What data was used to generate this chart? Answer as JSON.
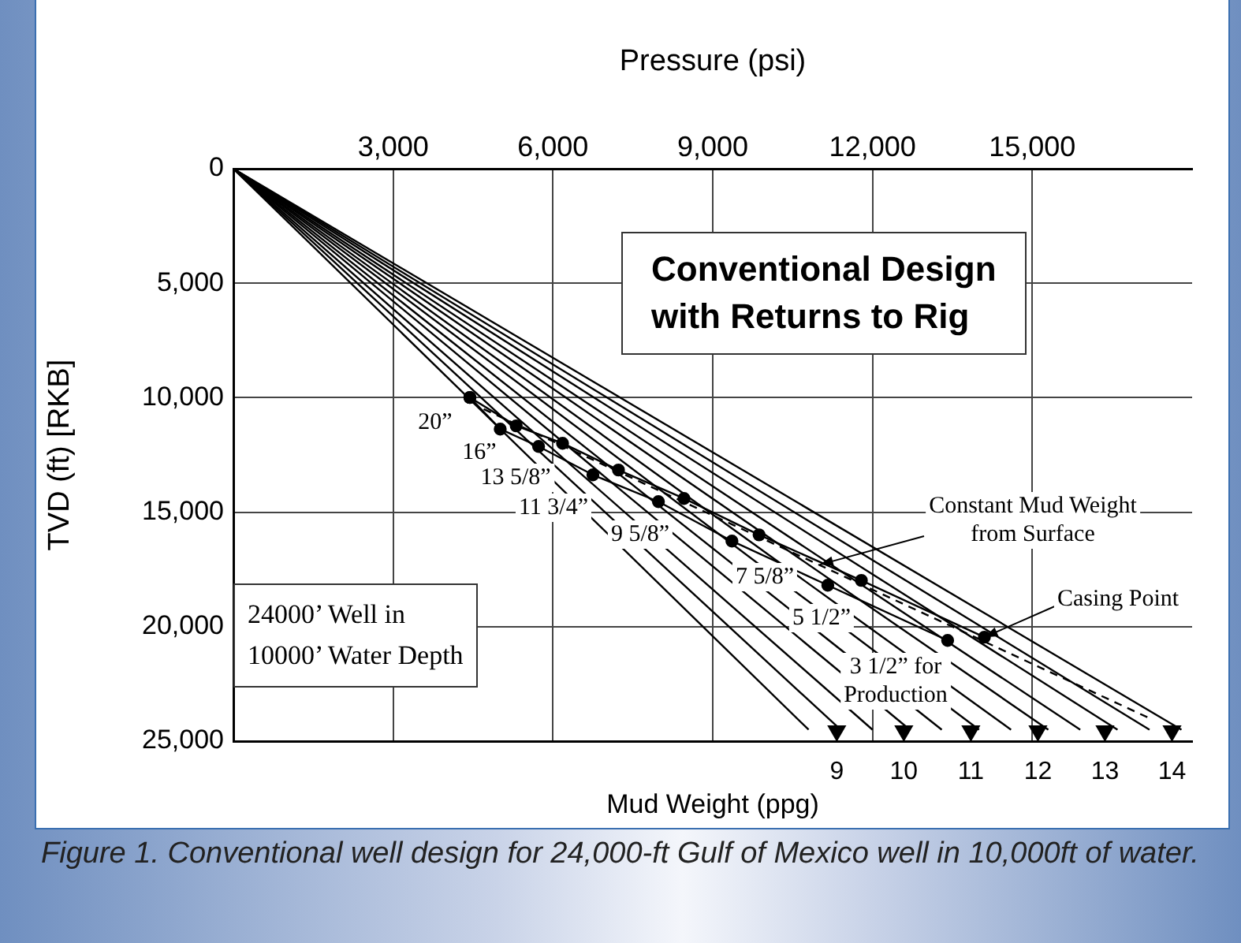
{
  "chart_data": {
    "type": "line",
    "xlabel": "Pressure (psi)",
    "x2label": "Mud Weight (ppg)",
    "ylabel": "TVD (ft) [RKB]",
    "xlim": [
      0,
      18000
    ],
    "xticks": [
      {
        "value": 3000,
        "label": "3,000"
      },
      {
        "value": 6000,
        "label": "6,000"
      },
      {
        "value": 9000,
        "label": "9,000"
      },
      {
        "value": 12000,
        "label": "12,000"
      },
      {
        "value": 15000,
        "label": "15,000"
      }
    ],
    "x2lim": [
      0,
      14.3
    ],
    "x2ticks": [
      9,
      10,
      11,
      12,
      13,
      14
    ],
    "ylim": [
      25000,
      0
    ],
    "yticks": [
      0,
      {
        "value": 5000,
        "label": "5,000"
      },
      {
        "value": 10000,
        "label": "10,000"
      },
      {
        "value": 15000,
        "label": "15,000"
      },
      {
        "value": 20000,
        "label": "20,000"
      },
      {
        "value": 25000,
        "label": "25,000"
      }
    ],
    "grid": true,
    "legend": false,
    "series": [
      {
        "color": "#000000",
        "marker": "none",
        "x": [
          0,
          10800
        ],
        "values": [
          0,
          24500
        ]
      },
      {
        "color": "#000000",
        "marker": "none",
        "x": [
          0,
          11400
        ],
        "values": [
          0,
          24500
        ]
      },
      {
        "color": "#000000",
        "marker": "none",
        "x": [
          0,
          12000
        ],
        "values": [
          0,
          24500
        ]
      },
      {
        "color": "#000000",
        "marker": "none",
        "x": [
          0,
          12700
        ],
        "values": [
          0,
          24500
        ]
      },
      {
        "color": "#000000",
        "marker": "none",
        "x": [
          0,
          13300
        ],
        "values": [
          0,
          24500
        ]
      },
      {
        "color": "#000000",
        "marker": "none",
        "x": [
          0,
          14000
        ],
        "values": [
          0,
          24500
        ]
      },
      {
        "color": "#000000",
        "marker": "none",
        "x": [
          0,
          14600
        ],
        "values": [
          0,
          24500
        ]
      },
      {
        "color": "#000000",
        "marker": "none",
        "x": [
          0,
          15300
        ],
        "values": [
          0,
          24500
        ]
      },
      {
        "color": "#000000",
        "marker": "none",
        "x": [
          0,
          15900
        ],
        "values": [
          0,
          24500
        ]
      },
      {
        "color": "#000000",
        "marker": "none",
        "x": [
          0,
          16600
        ],
        "values": [
          0,
          24500
        ]
      },
      {
        "color": "#000000",
        "marker": "none",
        "x": [
          0,
          17200
        ],
        "values": [
          0,
          24500
        ]
      },
      {
        "color": "#000000",
        "marker": "none",
        "x": [
          0,
          17800
        ],
        "values": [
          0,
          24500
        ]
      },
      {
        "color": "#000000",
        "marker": "none",
        "line_style": "dashed",
        "x": [
          4700,
          17200
        ],
        "values": [
          10500,
          24000
        ]
      },
      {
        "color": "#000000",
        "marker": "circle",
        "x": [
          4440,
          5010,
          5730,
          6750,
          7980,
          9360,
          11160,
          13410
        ],
        "values": [
          9990,
          11370,
          12130,
          13370,
          14540,
          16260,
          18190,
          20600
        ]
      },
      {
        "color": "#000000",
        "marker": "circle",
        "x": [
          4440,
          5310,
          6180,
          7230,
          8460,
          9870,
          11790,
          14100
        ],
        "values": [
          9990,
          11230,
          11990,
          13160,
          14400,
          15990,
          17980,
          20460
        ]
      },
      {
        "type": "scatter",
        "axis": "x2",
        "color": "#000000",
        "marker": "triangle",
        "x": [
          9,
          10,
          11,
          12,
          13,
          14
        ],
        "values": [
          24550,
          24550,
          24550,
          24550,
          24550,
          24550
        ]
      }
    ],
    "annotations": [
      "Conventional Design\nwith Returns to Rig",
      "24000’ Well in\n10000’ Water Depth",
      "20”",
      "16”",
      "13 5/8”",
      "11 3/4”",
      "9 5/8”",
      "7 5/8”",
      "5 1/2”",
      "3 1/2” for\nProduction",
      {
        "text": "Constant Mud Weight\nfrom Surface",
        "x": 11010,
        "y": 17290
      },
      {
        "text": "Casing Point",
        "x": 14100,
        "y": 20460
      },
      "Figure 1. Conventional well design for 24,000-ft Gulf of Mexico well in 10,000ft of water."
    ]
  }
}
